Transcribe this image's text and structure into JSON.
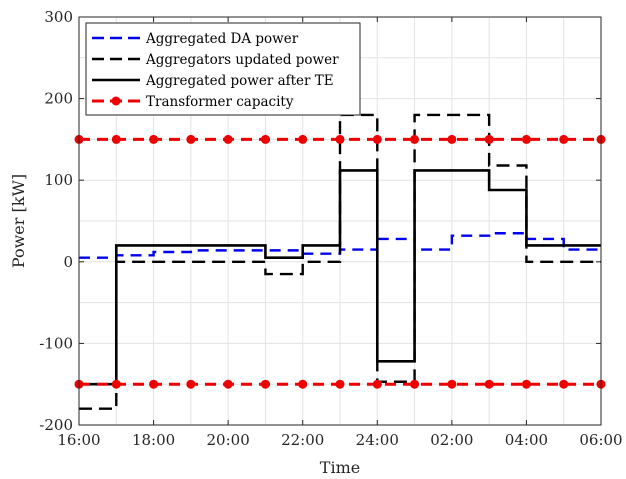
{
  "chart_data": {
    "type": "line",
    "xlabel": "Time",
    "ylabel": "Power [kW]",
    "xlim": [
      0,
      14
    ],
    "ylim": [
      -200,
      300
    ],
    "x_ticks": [
      0,
      2,
      4,
      6,
      8,
      10,
      12,
      14
    ],
    "x_tick_labels": [
      "16:00",
      "18:00",
      "20:00",
      "22:00",
      "24:00",
      "02:00",
      "04:00",
      "06:00"
    ],
    "y_ticks": [
      -200,
      -100,
      0,
      100,
      200,
      300
    ],
    "y_tick_labels": [
      "-200",
      "-100",
      "0",
      "100",
      "200",
      "300"
    ],
    "grid": true,
    "legend_position": "top-left",
    "series": [
      {
        "name": "Aggregated DA power",
        "color": "#0000ee",
        "style": "dashed",
        "step": true,
        "x": [
          0,
          1,
          2,
          3,
          4,
          5,
          6,
          7,
          8,
          9,
          10,
          11,
          12,
          13,
          14
        ],
        "y": [
          5,
          8,
          12,
          14,
          14,
          14,
          10,
          15,
          28,
          15,
          32,
          35,
          28,
          15,
          15
        ]
      },
      {
        "name": "Aggregators updated power",
        "color": "#000000",
        "style": "dashed",
        "step": true,
        "x": [
          0,
          1,
          2,
          3,
          4,
          5,
          6,
          7,
          8,
          9,
          10,
          11,
          12,
          13,
          14
        ],
        "y": [
          -180,
          0,
          0,
          0,
          0,
          -15,
          0,
          180,
          -147,
          180,
          180,
          118,
          0,
          0,
          0
        ]
      },
      {
        "name": "Aggregated power after TE",
        "color": "#000000",
        "style": "solid",
        "step": true,
        "x": [
          0,
          1,
          2,
          3,
          4,
          5,
          6,
          7,
          8,
          9,
          10,
          11,
          12,
          13,
          14
        ],
        "y": [
          -150,
          20,
          20,
          20,
          20,
          5,
          20,
          112,
          -122,
          112,
          112,
          88,
          20,
          20,
          20
        ]
      },
      {
        "name": "Transformer capacity",
        "color": "#ee0000",
        "style": "dashed",
        "markers": true,
        "x": [
          0,
          1,
          2,
          3,
          4,
          5,
          6,
          7,
          8,
          9,
          10,
          11,
          12,
          13,
          14
        ],
        "y_upper": [
          150,
          150,
          150,
          150,
          150,
          150,
          150,
          150,
          150,
          150,
          150,
          150,
          150,
          150,
          150
        ],
        "y_lower": [
          -150,
          -150,
          -150,
          -150,
          -150,
          -150,
          -150,
          -150,
          -150,
          -150,
          -150,
          -150,
          -150,
          -150,
          -150
        ]
      }
    ]
  }
}
